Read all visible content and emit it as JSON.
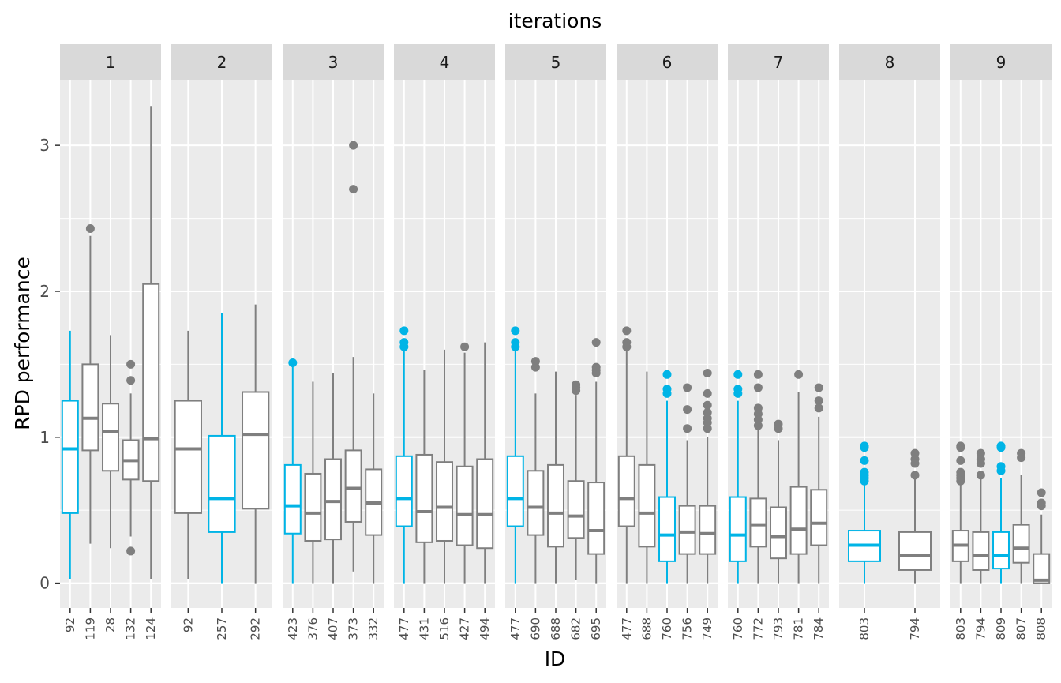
{
  "chart_data": {
    "type": "boxplot",
    "title": "iterations",
    "xlabel": "ID",
    "ylabel": "RPD performance",
    "ylim": [
      -0.17,
      3.45
    ],
    "yticks": [
      0,
      1,
      2,
      3
    ],
    "grid": true,
    "facet_layout": "1 row of 9 panels",
    "colors": {
      "highlight": "#00b4e6",
      "default": "#7f7f7f",
      "panel_bg": "#ebebeb",
      "strip_bg": "#d9d9d9",
      "grid": "#ffffff"
    },
    "panels": [
      {
        "label": "1",
        "boxes": [
          {
            "id": "92",
            "highlight": true,
            "lower_whisker": 0.03,
            "q1": 0.48,
            "median": 0.92,
            "q3": 1.25,
            "upper_whisker": 1.73,
            "outliers": []
          },
          {
            "id": "119",
            "highlight": false,
            "lower_whisker": 0.27,
            "q1": 0.91,
            "median": 1.13,
            "q3": 1.5,
            "upper_whisker": 2.38,
            "outliers": [
              2.43
            ]
          },
          {
            "id": "28",
            "highlight": false,
            "lower_whisker": 0.24,
            "q1": 0.77,
            "median": 1.04,
            "q3": 1.23,
            "upper_whisker": 1.7,
            "outliers": []
          },
          {
            "id": "132",
            "highlight": false,
            "lower_whisker": 0.32,
            "q1": 0.71,
            "median": 0.84,
            "q3": 0.98,
            "upper_whisker": 1.3,
            "outliers": [
              1.5,
              1.39,
              0.22
            ]
          },
          {
            "id": "124",
            "highlight": false,
            "lower_whisker": 0.03,
            "q1": 0.7,
            "median": 0.99,
            "q3": 2.05,
            "upper_whisker": 3.27,
            "outliers": []
          }
        ]
      },
      {
        "label": "2",
        "boxes": [
          {
            "id": "92",
            "highlight": false,
            "lower_whisker": 0.03,
            "q1": 0.48,
            "median": 0.92,
            "q3": 1.25,
            "upper_whisker": 1.73,
            "outliers": []
          },
          {
            "id": "257",
            "highlight": true,
            "lower_whisker": 0.0,
            "q1": 0.35,
            "median": 0.58,
            "q3": 1.01,
            "upper_whisker": 1.85,
            "outliers": []
          },
          {
            "id": "292",
            "highlight": false,
            "lower_whisker": 0.0,
            "q1": 0.51,
            "median": 1.02,
            "q3": 1.31,
            "upper_whisker": 1.91,
            "outliers": []
          }
        ]
      },
      {
        "label": "3",
        "boxes": [
          {
            "id": "423",
            "highlight": true,
            "lower_whisker": 0.0,
            "q1": 0.34,
            "median": 0.53,
            "q3": 0.81,
            "upper_whisker": 1.5,
            "outliers": [
              1.51
            ]
          },
          {
            "id": "376",
            "highlight": false,
            "lower_whisker": 0.0,
            "q1": 0.29,
            "median": 0.48,
            "q3": 0.75,
            "upper_whisker": 1.38,
            "outliers": []
          },
          {
            "id": "407",
            "highlight": false,
            "lower_whisker": 0.0,
            "q1": 0.3,
            "median": 0.56,
            "q3": 0.85,
            "upper_whisker": 1.44,
            "outliers": []
          },
          {
            "id": "373",
            "highlight": false,
            "lower_whisker": 0.08,
            "q1": 0.42,
            "median": 0.65,
            "q3": 0.91,
            "upper_whisker": 1.55,
            "outliers": [
              3.0,
              2.7
            ]
          },
          {
            "id": "332",
            "highlight": false,
            "lower_whisker": 0.0,
            "q1": 0.33,
            "median": 0.55,
            "q3": 0.78,
            "upper_whisker": 1.3,
            "outliers": []
          }
        ]
      },
      {
        "label": "4",
        "boxes": [
          {
            "id": "477",
            "highlight": true,
            "lower_whisker": 0.0,
            "q1": 0.39,
            "median": 0.58,
            "q3": 0.87,
            "upper_whisker": 1.6,
            "outliers": [
              1.73,
              1.65,
              1.62
            ]
          },
          {
            "id": "431",
            "highlight": false,
            "lower_whisker": 0.0,
            "q1": 0.28,
            "median": 0.49,
            "q3": 0.88,
            "upper_whisker": 1.46,
            "outliers": []
          },
          {
            "id": "516",
            "highlight": false,
            "lower_whisker": 0.0,
            "q1": 0.29,
            "median": 0.52,
            "q3": 0.83,
            "upper_whisker": 1.6,
            "outliers": []
          },
          {
            "id": "427",
            "highlight": false,
            "lower_whisker": 0.0,
            "q1": 0.26,
            "median": 0.47,
            "q3": 0.8,
            "upper_whisker": 1.58,
            "outliers": [
              1.62
            ]
          },
          {
            "id": "494",
            "highlight": false,
            "lower_whisker": 0.0,
            "q1": 0.24,
            "median": 0.47,
            "q3": 0.85,
            "upper_whisker": 1.65,
            "outliers": []
          }
        ]
      },
      {
        "label": "5",
        "boxes": [
          {
            "id": "477",
            "highlight": true,
            "lower_whisker": 0.0,
            "q1": 0.39,
            "median": 0.58,
            "q3": 0.87,
            "upper_whisker": 1.6,
            "outliers": [
              1.73,
              1.65,
              1.62
            ]
          },
          {
            "id": "690",
            "highlight": false,
            "lower_whisker": 0.0,
            "q1": 0.33,
            "median": 0.52,
            "q3": 0.77,
            "upper_whisker": 1.3,
            "outliers": [
              1.52,
              1.48
            ]
          },
          {
            "id": "688",
            "highlight": false,
            "lower_whisker": 0.0,
            "q1": 0.25,
            "median": 0.48,
            "q3": 0.81,
            "upper_whisker": 1.45,
            "outliers": []
          },
          {
            "id": "682",
            "highlight": false,
            "lower_whisker": 0.02,
            "q1": 0.31,
            "median": 0.46,
            "q3": 0.7,
            "upper_whisker": 1.29,
            "outliers": [
              1.36,
              1.34,
              1.32
            ]
          },
          {
            "id": "695",
            "highlight": false,
            "lower_whisker": 0.0,
            "q1": 0.2,
            "median": 0.36,
            "q3": 0.69,
            "upper_whisker": 1.38,
            "outliers": [
              1.65,
              1.48,
              1.46,
              1.44
            ]
          }
        ]
      },
      {
        "label": "6",
        "boxes": [
          {
            "id": "477",
            "highlight": false,
            "lower_whisker": 0.0,
            "q1": 0.39,
            "median": 0.58,
            "q3": 0.87,
            "upper_whisker": 1.6,
            "outliers": [
              1.73,
              1.65,
              1.62
            ]
          },
          {
            "id": "688",
            "highlight": false,
            "lower_whisker": 0.0,
            "q1": 0.25,
            "median": 0.48,
            "q3": 0.81,
            "upper_whisker": 1.45,
            "outliers": []
          },
          {
            "id": "760",
            "highlight": true,
            "lower_whisker": 0.0,
            "q1": 0.15,
            "median": 0.33,
            "q3": 0.59,
            "upper_whisker": 1.25,
            "outliers": [
              1.43,
              1.33,
              1.3
            ]
          },
          {
            "id": "756",
            "highlight": false,
            "lower_whisker": 0.0,
            "q1": 0.2,
            "median": 0.35,
            "q3": 0.53,
            "upper_whisker": 0.98,
            "outliers": [
              1.34,
              1.19,
              1.06
            ]
          },
          {
            "id": "749",
            "highlight": false,
            "lower_whisker": 0.0,
            "q1": 0.2,
            "median": 0.34,
            "q3": 0.53,
            "upper_whisker": 1.0,
            "outliers": [
              1.44,
              1.3,
              1.22,
              1.17,
              1.13,
              1.1,
              1.06
            ]
          }
        ]
      },
      {
        "label": "7",
        "boxes": [
          {
            "id": "760",
            "highlight": true,
            "lower_whisker": 0.0,
            "q1": 0.15,
            "median": 0.33,
            "q3": 0.59,
            "upper_whisker": 1.25,
            "outliers": [
              1.43,
              1.33,
              1.3
            ]
          },
          {
            "id": "772",
            "highlight": false,
            "lower_whisker": 0.0,
            "q1": 0.25,
            "median": 0.4,
            "q3": 0.58,
            "upper_whisker": 1.05,
            "outliers": [
              1.43,
              1.34,
              1.2,
              1.16,
              1.12,
              1.08
            ]
          },
          {
            "id": "793",
            "highlight": false,
            "lower_whisker": 0.0,
            "q1": 0.17,
            "median": 0.32,
            "q3": 0.52,
            "upper_whisker": 0.98,
            "outliers": [
              1.09,
              1.06
            ]
          },
          {
            "id": "781",
            "highlight": false,
            "lower_whisker": 0.0,
            "q1": 0.2,
            "median": 0.37,
            "q3": 0.66,
            "upper_whisker": 1.31,
            "outliers": [
              1.43
            ]
          },
          {
            "id": "784",
            "highlight": false,
            "lower_whisker": 0.0,
            "q1": 0.26,
            "median": 0.41,
            "q3": 0.64,
            "upper_whisker": 1.14,
            "outliers": [
              1.34,
              1.25,
              1.2
            ]
          }
        ]
      },
      {
        "label": "8",
        "boxes": [
          {
            "id": "803",
            "highlight": true,
            "lower_whisker": 0.0,
            "q1": 0.15,
            "median": 0.26,
            "q3": 0.36,
            "upper_whisker": 0.68,
            "outliers": [
              0.94,
              0.93,
              0.84,
              0.76,
              0.74,
              0.72,
              0.7
            ]
          },
          {
            "id": "794",
            "highlight": false,
            "lower_whisker": 0.0,
            "q1": 0.09,
            "median": 0.19,
            "q3": 0.35,
            "upper_whisker": 0.72,
            "outliers": [
              0.89,
              0.85,
              0.82,
              0.74
            ]
          }
        ]
      },
      {
        "label": "9",
        "boxes": [
          {
            "id": "803",
            "highlight": false,
            "lower_whisker": 0.0,
            "q1": 0.15,
            "median": 0.26,
            "q3": 0.36,
            "upper_whisker": 0.68,
            "outliers": [
              0.94,
              0.93,
              0.84,
              0.76,
              0.74,
              0.72,
              0.7
            ]
          },
          {
            "id": "794",
            "highlight": false,
            "lower_whisker": 0.0,
            "q1": 0.09,
            "median": 0.19,
            "q3": 0.35,
            "upper_whisker": 0.72,
            "outliers": [
              0.89,
              0.85,
              0.82,
              0.74
            ]
          },
          {
            "id": "809",
            "highlight": true,
            "lower_whisker": 0.0,
            "q1": 0.1,
            "median": 0.19,
            "q3": 0.35,
            "upper_whisker": 0.72,
            "outliers": [
              0.94,
              0.93,
              0.8,
              0.77
            ]
          },
          {
            "id": "807",
            "highlight": false,
            "lower_whisker": 0.0,
            "q1": 0.14,
            "median": 0.24,
            "q3": 0.4,
            "upper_whisker": 0.74,
            "outliers": [
              0.89,
              0.86
            ]
          },
          {
            "id": "808",
            "highlight": false,
            "lower_whisker": 0.0,
            "q1": 0.0,
            "median": 0.02,
            "q3": 0.2,
            "upper_whisker": 0.47,
            "outliers": [
              0.62,
              0.55,
              0.53
            ]
          }
        ]
      }
    ]
  }
}
